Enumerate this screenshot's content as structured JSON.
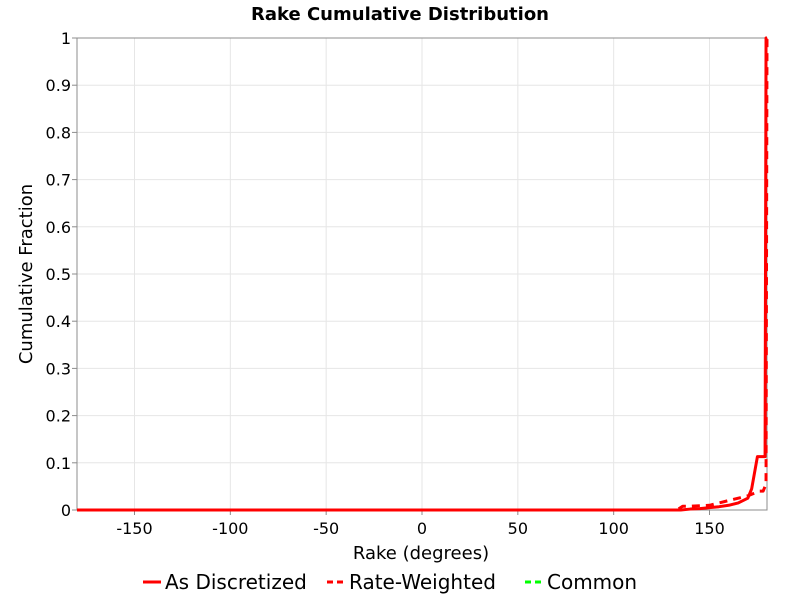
{
  "chart_data": {
    "type": "line",
    "title": "Rake Cumulative Distribution",
    "xlabel": "Rake (degrees)",
    "ylabel": "Cumulative Fraction",
    "xlim": [
      -180,
      180
    ],
    "ylim": [
      0,
      1
    ],
    "x_ticks": [
      -150,
      -100,
      -50,
      0,
      50,
      100,
      150
    ],
    "y_ticks": [
      0,
      0.1,
      0.2,
      0.3,
      0.4,
      0.5,
      0.6,
      0.7,
      0.8,
      0.9,
      1
    ],
    "grid": true,
    "legend_position": "bottom",
    "series": [
      {
        "name": "As Discretized",
        "style": "solid",
        "color": "#ff0000",
        "x": [
          -180,
          135,
          140,
          145,
          150,
          155,
          160,
          165,
          170,
          172,
          175,
          178,
          179,
          179.5,
          180
        ],
        "y": [
          0,
          0,
          0.002,
          0.003,
          0.005,
          0.007,
          0.01,
          0.015,
          0.025,
          0.045,
          0.113,
          0.113,
          0.113,
          1,
          1
        ]
      },
      {
        "name": "Rate-Weighted",
        "style": "dashed",
        "color": "#ff0000",
        "x": [
          -180,
          133,
          136,
          140,
          150,
          155,
          160,
          165,
          170,
          173,
          176,
          178,
          179.5,
          180
        ],
        "y": [
          0,
          0,
          0.008,
          0.008,
          0.01,
          0.015,
          0.02,
          0.025,
          0.03,
          0.035,
          0.04,
          0.04,
          0.055,
          1
        ]
      },
      {
        "name": "Common",
        "style": "dashed",
        "color": "#00ff00",
        "x": [],
        "y": []
      }
    ]
  }
}
